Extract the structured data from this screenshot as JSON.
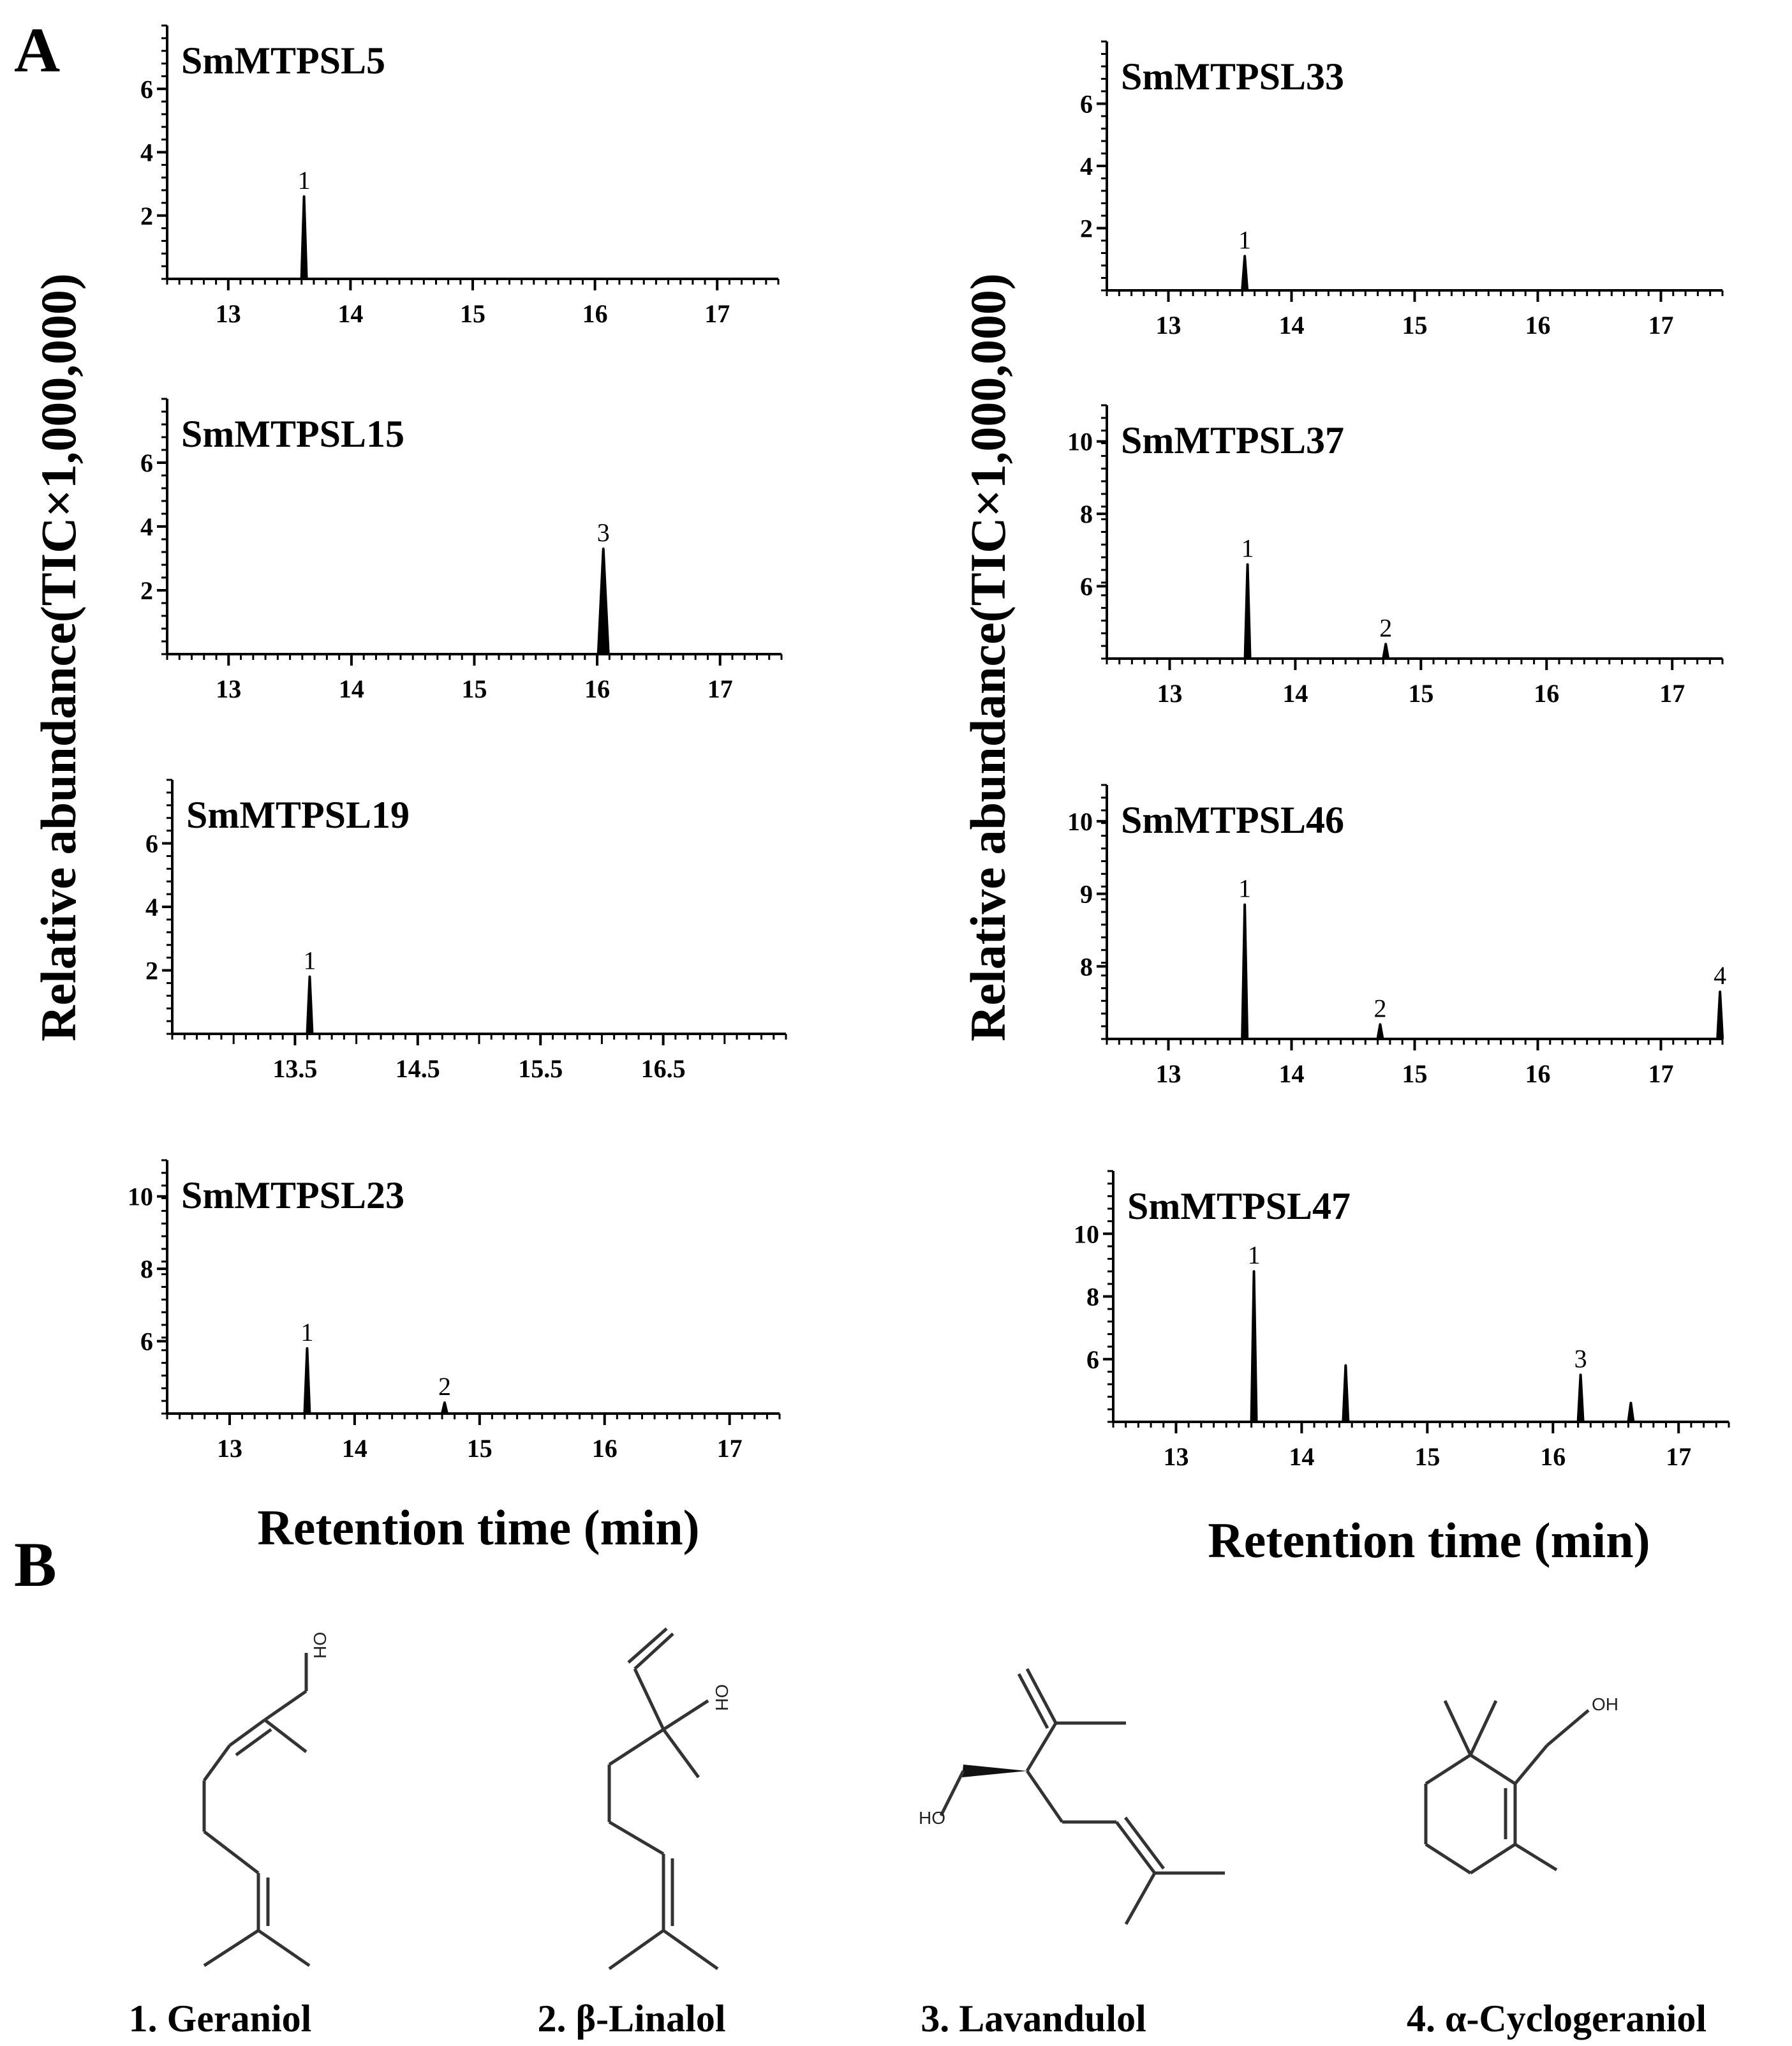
{
  "panels": {
    "a": "A",
    "b": "B"
  },
  "y_label": "Relative abundance(TIC×1,000,000)",
  "x_label": "Retention time (min)",
  "chart_data": [
    {
      "type": "line",
      "title": "SmMTPSL5",
      "xlabel": "Retention time (min)",
      "ylabel": "Relative abundance(TIC×1,000,000)",
      "xlim": [
        12.5,
        17.5
      ],
      "ylim": [
        0,
        8
      ],
      "xticks": [
        "13",
        "14",
        "15",
        "16",
        "17"
      ],
      "yticks": [
        "2",
        "4",
        "6"
      ],
      "peaks": [
        {
          "x": 13.62,
          "y": 2.6,
          "label": "1"
        }
      ]
    },
    {
      "type": "line",
      "title": "SmMTPSL15",
      "xlabel": "Retention time (min)",
      "ylabel": "Relative abundance(TIC×1,000,000)",
      "xlim": [
        12.5,
        17.5
      ],
      "ylim": [
        0,
        8
      ],
      "xticks": [
        "13",
        "14",
        "15",
        "16",
        "17"
      ],
      "yticks": [
        "2",
        "4",
        "6"
      ],
      "peaks": [
        {
          "x": 16.05,
          "y": 3.3,
          "label": "3"
        }
      ]
    },
    {
      "type": "line",
      "title": "SmMTPSL19",
      "xlabel": "Retention time (min)",
      "ylabel": "Relative abundance(TIC×1,000,000)",
      "xlim": [
        12.5,
        17.5
      ],
      "ylim": [
        0,
        8
      ],
      "xticks": [
        "13.5",
        "14.5",
        "15.5",
        "16.5"
      ],
      "yticks": [
        "2",
        "4",
        "6"
      ],
      "peaks": [
        {
          "x": 13.62,
          "y": 1.8,
          "label": "1"
        }
      ]
    },
    {
      "type": "line",
      "title": "SmMTPSL23",
      "xlabel": "Retention time (min)",
      "ylabel": "Relative abundance(TIC×1,000,000)",
      "xlim": [
        12.5,
        17.4
      ],
      "ylim": [
        4,
        11
      ],
      "xticks": [
        "13",
        "14",
        "15",
        "16",
        "17"
      ],
      "yticks": [
        "6",
        "8",
        "10"
      ],
      "peaks": [
        {
          "x": 13.62,
          "y": 5.8,
          "label": "1"
        },
        {
          "x": 14.72,
          "y": 4.3,
          "label": "2"
        }
      ]
    },
    {
      "type": "line",
      "title": "SmMTPSL33",
      "xlabel": "Retention time (min)",
      "ylabel": "Relative abundance(TIC×1,000,000)",
      "xlim": [
        12.5,
        17.5
      ],
      "ylim": [
        0,
        8
      ],
      "xticks": [
        "13",
        "14",
        "15",
        "16",
        "17"
      ],
      "yticks": [
        "2",
        "4",
        "6"
      ],
      "peaks": [
        {
          "x": 13.62,
          "y": 1.1,
          "label": "1"
        }
      ]
    },
    {
      "type": "line",
      "title": "SmMTPSL37",
      "xlabel": "Retention time (min)",
      "ylabel": "Relative abundance(TIC×1,000,000)",
      "xlim": [
        12.5,
        17.4
      ],
      "ylim": [
        4,
        11
      ],
      "xticks": [
        "13",
        "14",
        "15",
        "16",
        "17"
      ],
      "yticks": [
        "6",
        "8",
        "10"
      ],
      "peaks": [
        {
          "x": 13.62,
          "y": 6.6,
          "label": "1"
        },
        {
          "x": 14.72,
          "y": 4.4,
          "label": "2"
        }
      ]
    },
    {
      "type": "line",
      "title": "SmMTPSL46",
      "xlabel": "Retention time (min)",
      "ylabel": "Relative abundance(TIC×1,000,000)",
      "xlim": [
        12.5,
        17.5
      ],
      "ylim": [
        7,
        10.5
      ],
      "xticks": [
        "13",
        "14",
        "15",
        "16",
        "17"
      ],
      "yticks": [
        "8",
        "9",
        "10"
      ],
      "peaks": [
        {
          "x": 13.62,
          "y": 8.85,
          "label": "1"
        },
        {
          "x": 14.72,
          "y": 7.2,
          "label": "2"
        },
        {
          "x": 17.48,
          "y": 7.65,
          "label": "4"
        }
      ]
    },
    {
      "type": "line",
      "title": "SmMTPSL47",
      "xlabel": "Retention time (min)",
      "ylabel": "Relative abundance(TIC×1,000,000)",
      "xlim": [
        12.5,
        17.4
      ],
      "ylim": [
        4,
        12
      ],
      "xticks": [
        "13",
        "14",
        "15",
        "16",
        "17"
      ],
      "yticks": [
        "6",
        "8",
        "10"
      ],
      "peaks": [
        {
          "x": 13.62,
          "y": 8.8,
          "label": "1"
        },
        {
          "x": 14.35,
          "y": 5.8,
          "label": ""
        },
        {
          "x": 16.22,
          "y": 5.5,
          "label": "3"
        },
        {
          "x": 16.62,
          "y": 4.6,
          "label": ""
        }
      ]
    }
  ],
  "compounds": [
    {
      "name": "1. Geraniol",
      "oh": "OH"
    },
    {
      "name": "2. β-Linalol",
      "oh": "OH"
    },
    {
      "name": "3. Lavandulol",
      "oh": "HO"
    },
    {
      "name": "4. α-Cyclogeraniol",
      "oh": "OH"
    }
  ]
}
